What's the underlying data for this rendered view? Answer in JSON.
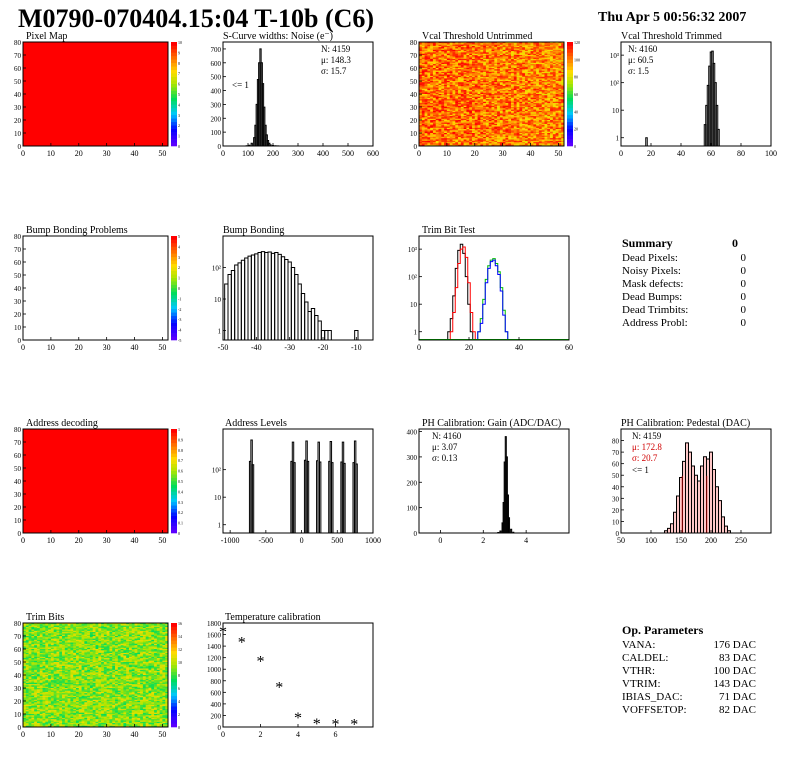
{
  "header": {
    "title": "M0790-070404.15:04 T-10b (C6)",
    "date": "Thu Apr  5 00:56:32 2007"
  },
  "panels": {
    "pixel_map": {
      "title": "Pixel Map"
    },
    "scurve": {
      "title": "S-Curve widths: Noise (e⁻)",
      "stats": [
        "N: 4159",
        "μ: 148.3",
        "σ: 15.7"
      ],
      "note": "<= 1"
    },
    "vcal_untrimmed": {
      "title": "Vcal Threshold Untrimmed"
    },
    "vcal_trimmed": {
      "title": "Vcal Threshold Trimmed",
      "stats": [
        "N: 4160",
        "μ: 60.5",
        "σ:  1.5"
      ]
    },
    "bump_problems": {
      "title": "Bump Bonding Problems"
    },
    "bump_bonding": {
      "title": "Bump Bonding"
    },
    "trim_bit_test": {
      "title": "Trim Bit Test"
    },
    "address_decoding": {
      "title": "Address decoding"
    },
    "address_levels": {
      "title": "Address Levels"
    },
    "ph_gain": {
      "title": "PH Calibration: Gain (ADC/DAC)",
      "stats": [
        "N: 4160",
        "μ: 3.07",
        "σ: 0.13"
      ]
    },
    "ph_pedestal": {
      "title": "PH Calibration: Pedestal (DAC)",
      "stats": [
        "N: 4159",
        "μ: 172.8",
        "σ: 20.7",
        "<= 1"
      ]
    },
    "trim_bits": {
      "title": "Trim Bits"
    },
    "temperature": {
      "title": "Temperature calibration"
    }
  },
  "summary": {
    "title": "Summary",
    "value": "0",
    "rows": [
      {
        "label": "Dead Pixels:",
        "value": "0"
      },
      {
        "label": "Noisy Pixels:",
        "value": "0"
      },
      {
        "label": "Mask defects:",
        "value": "0"
      },
      {
        "label": "Dead Bumps:",
        "value": "0"
      },
      {
        "label": "Dead Trimbits:",
        "value": "0"
      },
      {
        "label": "Address Probl:",
        "value": "0"
      }
    ]
  },
  "op_params": {
    "title": "Op. Parameters",
    "rows": [
      {
        "label": "VANA:",
        "value": "176 DAC"
      },
      {
        "label": "CALDEL:",
        "value": "83 DAC"
      },
      {
        "label": "VTHR:",
        "value": "100 DAC"
      },
      {
        "label": "VTRIM:",
        "value": "143 DAC"
      },
      {
        "label": "IBIAS_DAC:",
        "value": "71 DAC"
      },
      {
        "label": "VOFFSETOP:",
        "value": "82 DAC"
      }
    ]
  },
  "colors": {
    "stats_red": "#d00000",
    "hist_line": "#000000",
    "green": "#00c000",
    "blue": "#0000ff",
    "red": "#ff0000"
  },
  "chart_data": [
    {
      "id": "pixel_map",
      "type": "heatmap",
      "title": "Pixel Map",
      "xlim": [
        0,
        52
      ],
      "ylim": [
        0,
        80
      ],
      "xticks": [
        "0",
        "10",
        "20",
        "30",
        "40",
        "50"
      ],
      "yticks": [
        "0",
        "10",
        "20",
        "30",
        "40",
        "50",
        "60",
        "70",
        "80"
      ],
      "fill": "uniform-max",
      "zlim": [
        0,
        10
      ],
      "zticks": [
        "0",
        "1",
        "2",
        "3",
        "4",
        "5",
        "6",
        "7",
        "8",
        "9",
        "10"
      ]
    },
    {
      "id": "scurve",
      "type": "bar",
      "title": "S-Curve widths: Noise (e⁻)",
      "xlim": [
        0,
        600
      ],
      "ylim": [
        0,
        750
      ],
      "xticks": [
        "0",
        "100",
        "200",
        "300",
        "400",
        "500",
        "600"
      ],
      "yticks": [
        "0",
        "100",
        "200",
        "300",
        "400",
        "500",
        "600",
        "700"
      ],
      "x": [
        95,
        105,
        115,
        125,
        130,
        135,
        140,
        145,
        150,
        155,
        160,
        165,
        170,
        175,
        180,
        185,
        190,
        200,
        210,
        220
      ],
      "values": [
        2,
        5,
        20,
        60,
        150,
        300,
        480,
        600,
        700,
        600,
        450,
        280,
        150,
        80,
        40,
        20,
        8,
        4,
        2,
        1
      ]
    },
    {
      "id": "vcal_untrimmed",
      "type": "heatmap",
      "title": "Vcal Threshold Untrimmed",
      "xlim": [
        0,
        52
      ],
      "ylim": [
        0,
        80
      ],
      "xticks": [
        "0",
        "10",
        "20",
        "30",
        "40",
        "50"
      ],
      "yticks": [
        "0",
        "10",
        "20",
        "30",
        "40",
        "50",
        "60",
        "70",
        "80"
      ],
      "fill": "noise-high",
      "zlim": [
        0,
        130
      ],
      "zticks": [
        "0",
        "20",
        "40",
        "60",
        "80",
        "100",
        "120"
      ]
    },
    {
      "id": "vcal_trimmed",
      "type": "bar",
      "title": "Vcal Threshold Trimmed",
      "log_y": true,
      "xlim": [
        0,
        100
      ],
      "ylim": [
        0.5,
        3000
      ],
      "xticks": [
        "0",
        "20",
        "40",
        "60",
        "80",
        "100"
      ],
      "yticks": [
        "1",
        "10",
        "10²",
        "10³"
      ],
      "x": [
        17,
        56,
        57,
        58,
        59,
        60,
        61,
        62,
        63,
        64,
        65
      ],
      "values": [
        1,
        3,
        15,
        80,
        400,
        1300,
        1400,
        500,
        100,
        15,
        2
      ]
    },
    {
      "id": "bump_problems",
      "type": "heatmap",
      "title": "Bump Bonding Problems",
      "xlim": [
        0,
        52
      ],
      "ylim": [
        0,
        80
      ],
      "xticks": [
        "0",
        "10",
        "20",
        "30",
        "40",
        "50"
      ],
      "yticks": [
        "0",
        "10",
        "20",
        "30",
        "40",
        "50",
        "60",
        "70",
        "80"
      ],
      "fill": "empty",
      "zlim": [
        -5,
        5
      ],
      "zticks": [
        "-5",
        "-4",
        "-3",
        "-2",
        "-1",
        "0",
        "1",
        "2",
        "3",
        "4",
        "5"
      ]
    },
    {
      "id": "bump_bonding",
      "type": "bar",
      "title": "Bump Bonding",
      "log_y": true,
      "xlim": [
        -50,
        -5
      ],
      "ylim": [
        0.5,
        1000
      ],
      "xticks": [
        "-50",
        "-40",
        "-30",
        "-20",
        "-10"
      ],
      "yticks": [
        "1",
        "10",
        "10²"
      ],
      "x": [
        -49,
        -48,
        -47,
        -46,
        -45,
        -44,
        -43,
        -42,
        -41,
        -40,
        -39,
        -38,
        -37,
        -36,
        -35,
        -34,
        -33,
        -32,
        -31,
        -30,
        -29,
        -28,
        -27,
        -26,
        -25,
        -24,
        -23,
        -22,
        -21,
        -20,
        -19,
        -18,
        -10
      ],
      "values": [
        30,
        60,
        80,
        120,
        140,
        170,
        200,
        230,
        250,
        270,
        300,
        320,
        300,
        310,
        280,
        300,
        260,
        220,
        180,
        150,
        100,
        60,
        30,
        15,
        8,
        4,
        5,
        3,
        2,
        1,
        1,
        1,
        1
      ]
    },
    {
      "id": "trim_bit_test",
      "type": "line",
      "title": "Trim Bit Test",
      "log_y": true,
      "xlim": [
        0,
        60
      ],
      "ylim": [
        0.5,
        3000
      ],
      "xticks": [
        "0",
        "20",
        "40",
        "60"
      ],
      "yticks": [
        "1",
        "10",
        "10²",
        "10³"
      ],
      "series": [
        {
          "color": "black",
          "x": [
            12,
            13,
            14,
            15,
            16,
            17,
            18,
            19,
            20,
            21
          ],
          "values": [
            1,
            3,
            20,
            200,
            900,
            1500,
            700,
            100,
            10,
            1
          ]
        },
        {
          "color": "red",
          "x": [
            13,
            14,
            15,
            16,
            17,
            18,
            19,
            20,
            21,
            22
          ],
          "values": [
            1,
            5,
            40,
            300,
            1000,
            1200,
            500,
            60,
            5,
            1
          ]
        },
        {
          "color": "green",
          "x": [
            24,
            25,
            26,
            27,
            28,
            29,
            30,
            31,
            32,
            33,
            34,
            35
          ],
          "values": [
            1,
            3,
            15,
            80,
            250,
            400,
            450,
            300,
            150,
            40,
            6,
            1
          ]
        },
        {
          "color": "blue",
          "x": [
            24,
            25,
            26,
            27,
            28,
            29,
            30,
            31,
            32,
            33,
            34,
            35
          ],
          "values": [
            1,
            2,
            10,
            60,
            200,
            350,
            400,
            250,
            120,
            30,
            4,
            1
          ]
        }
      ]
    },
    {
      "id": "address_decoding",
      "type": "heatmap",
      "title": "Address decoding",
      "xlim": [
        0,
        52
      ],
      "ylim": [
        0,
        80
      ],
      "xticks": [
        "0",
        "10",
        "20",
        "30",
        "40",
        "50"
      ],
      "yticks": [
        "0",
        "10",
        "20",
        "30",
        "40",
        "50",
        "60",
        "70",
        "80"
      ],
      "fill": "uniform-max",
      "zlim": [
        0,
        1
      ],
      "zticks": [
        "0",
        "0.1",
        "0.2",
        "0.3",
        "0.4",
        "0.5",
        "0.6",
        "0.7",
        "0.8",
        "0.9",
        "1"
      ]
    },
    {
      "id": "address_levels",
      "type": "bar",
      "title": "Address Levels",
      "log_y": true,
      "xlim": [
        -1100,
        1000
      ],
      "ylim": [
        0.5,
        3000
      ],
      "xticks": [
        "-1000",
        "-500",
        "0",
        "500",
        "1000"
      ],
      "yticks": [
        "1",
        "10",
        "10²"
      ],
      "x": [
        -720,
        -700,
        -680,
        -140,
        -120,
        -100,
        50,
        70,
        90,
        220,
        240,
        260,
        390,
        410,
        430,
        560,
        580,
        600,
        730,
        750,
        770
      ],
      "values": [
        200,
        1200,
        150,
        200,
        1000,
        180,
        220,
        1100,
        200,
        210,
        1000,
        190,
        200,
        1050,
        180,
        190,
        1000,
        170,
        180,
        1100,
        160
      ]
    },
    {
      "id": "ph_gain",
      "type": "bar",
      "title": "PH Calibration: Gain (ADC/DAC)",
      "xlim": [
        -1,
        6
      ],
      "ylim": [
        0,
        410
      ],
      "xticks": [
        "0",
        "2",
        "4"
      ],
      "yticks": [
        "0",
        "100",
        "200",
        "300",
        "400"
      ],
      "x": [
        2.7,
        2.8,
        2.9,
        2.95,
        3.0,
        3.05,
        3.1,
        3.15,
        3.2,
        3.3,
        3.4
      ],
      "values": [
        2,
        8,
        40,
        120,
        280,
        380,
        300,
        150,
        60,
        15,
        3
      ]
    },
    {
      "id": "ph_pedestal",
      "type": "bar",
      "title": "PH Calibration: Pedestal (DAC)",
      "xlim": [
        50,
        300
      ],
      "ylim": [
        0,
        90
      ],
      "xticks": [
        "50",
        "100",
        "150",
        "200",
        "250"
      ],
      "yticks": [
        "0",
        "10",
        "20",
        "30",
        "40",
        "50",
        "60",
        "70",
        "80"
      ],
      "x": [
        125,
        130,
        135,
        140,
        145,
        150,
        155,
        160,
        165,
        170,
        175,
        180,
        185,
        190,
        195,
        200,
        205,
        210,
        215,
        220,
        225,
        230
      ],
      "values": [
        2,
        4,
        8,
        18,
        32,
        48,
        62,
        78,
        70,
        58,
        50,
        45,
        58,
        66,
        64,
        70,
        55,
        40,
        28,
        14,
        6,
        2
      ]
    },
    {
      "id": "trim_bits",
      "type": "heatmap",
      "title": "Trim Bits",
      "xlim": [
        0,
        52
      ],
      "ylim": [
        0,
        80
      ],
      "xticks": [
        "0",
        "10",
        "20",
        "30",
        "40",
        "50"
      ],
      "yticks": [
        "0",
        "10",
        "20",
        "30",
        "40",
        "50",
        "60",
        "70",
        "80"
      ],
      "fill": "noise-mid",
      "zlim": [
        0,
        16
      ],
      "zticks": [
        "0",
        "2",
        "4",
        "6",
        "8",
        "10",
        "12",
        "14",
        "16"
      ]
    },
    {
      "id": "temperature",
      "type": "scatter",
      "title": "Temperature calibration",
      "xlim": [
        0,
        8
      ],
      "ylim": [
        0,
        1800
      ],
      "xticks": [
        "0",
        "2",
        "4",
        "6"
      ],
      "yticks": [
        "0",
        "200",
        "400",
        "600",
        "800",
        "1000",
        "1200",
        "1400",
        "1600",
        "1800"
      ],
      "x": [
        0,
        1,
        2,
        3,
        4,
        5,
        6,
        7
      ],
      "values": [
        1660,
        1480,
        1150,
        700,
        170,
        70,
        60,
        60
      ]
    }
  ]
}
